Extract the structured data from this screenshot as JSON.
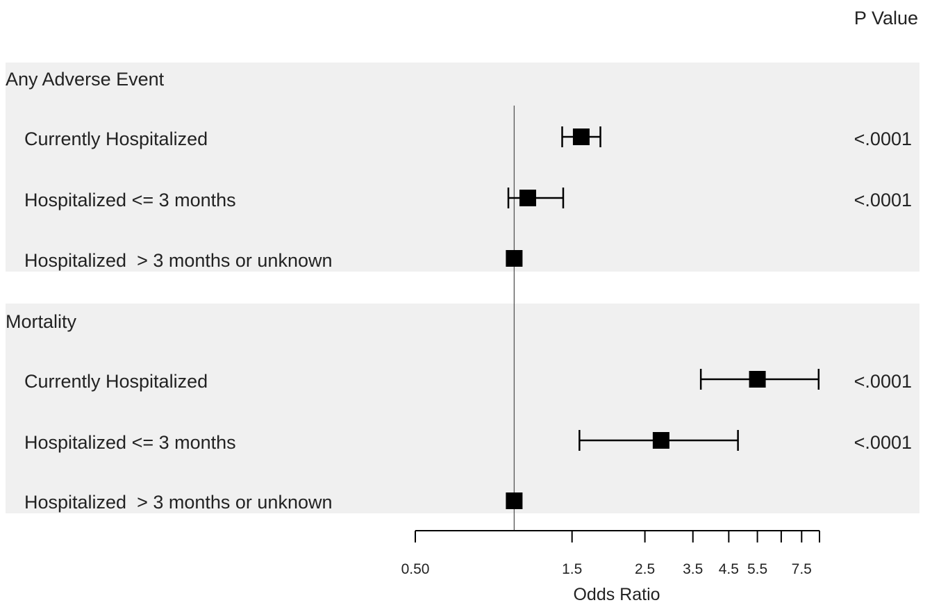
{
  "header": {
    "p_value_label": "P Value"
  },
  "chart_data": {
    "type": "forest",
    "xlabel": "Odds Ratio",
    "x_scale": "log",
    "reference_line": 1,
    "ticks": [
      {
        "value": 0.5,
        "label": "0.50"
      },
      {
        "value": 1.5,
        "label": "1.5"
      },
      {
        "value": 2.5,
        "label": "2.5"
      },
      {
        "value": 3.5,
        "label": "3.5"
      },
      {
        "value": 4.5,
        "label": "4.5"
      },
      {
        "value": 5.5,
        "label": "5.5"
      },
      {
        "value": 6.5,
        "label": ""
      },
      {
        "value": 7.5,
        "label": "7.5"
      },
      {
        "value": 8.5,
        "label": ""
      }
    ],
    "xlim": [
      0.5,
      8.5
    ],
    "groups": [
      {
        "name": "Any Adverse Event",
        "rows": [
          {
            "label": "Currently Hospitalized",
            "or": 1.6,
            "lo": 1.4,
            "hi": 1.83,
            "p": "<.0001"
          },
          {
            "label": "Hospitalized <= 3 months",
            "or": 1.1,
            "lo": 0.96,
            "hi": 1.41,
            "p": "<.0001"
          },
          {
            "label": "Hospitalized  > 3 months or unknown",
            "or": 1.0,
            "lo": null,
            "hi": null,
            "p": ""
          }
        ]
      },
      {
        "name": "Mortality",
        "rows": [
          {
            "label": "Currently Hospitalized",
            "or": 5.5,
            "lo": 3.7,
            "hi": 8.45,
            "p": "<.0001"
          },
          {
            "label": "Hospitalized <= 3 months",
            "or": 2.8,
            "lo": 1.58,
            "hi": 4.8,
            "p": "<.0001"
          },
          {
            "label": "Hospitalized  > 3 months or unknown",
            "or": 1.0,
            "lo": null,
            "hi": null,
            "p": ""
          }
        ]
      }
    ]
  }
}
